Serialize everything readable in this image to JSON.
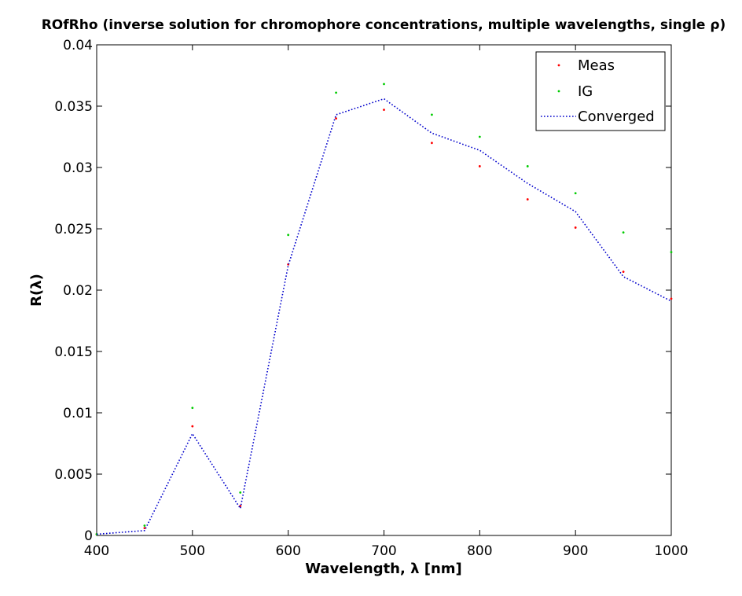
{
  "chart_data": {
    "type": "line",
    "title": "ROfRho (inverse solution for chromophore concentrations, multiple wavelengths, single ρ)",
    "xlabel": "Wavelength, λ [nm]",
    "ylabel": "R(λ)",
    "xlim": [
      400,
      1000
    ],
    "ylim": [
      0,
      0.04
    ],
    "xticks": [
      400,
      500,
      600,
      700,
      800,
      900,
      1000
    ],
    "yticks": [
      0,
      0.005,
      0.01,
      0.015,
      0.02,
      0.025,
      0.03,
      0.035,
      0.04
    ],
    "xtick_labels": [
      "400",
      "500",
      "600",
      "700",
      "800",
      "900",
      "1000"
    ],
    "ytick_labels": [
      "0",
      "0.005",
      "0.01",
      "0.015",
      "0.02",
      "0.025",
      "0.03",
      "0.035",
      "0.04"
    ],
    "grid": false,
    "legend_position": "top-right",
    "series": [
      {
        "name": "Meas",
        "style": "point",
        "color": "#ff0000",
        "x": [
          400,
          450,
          500,
          550,
          600,
          650,
          700,
          750,
          800,
          850,
          900,
          950,
          1000
        ],
        "y": [
          0.0001,
          0.0006,
          0.0089,
          0.0024,
          0.0221,
          0.034,
          0.0347,
          0.032,
          0.0301,
          0.0274,
          0.0251,
          0.0215,
          0.0193
        ]
      },
      {
        "name": "IG",
        "style": "point",
        "color": "#00cc00",
        "x": [
          400,
          450,
          500,
          550,
          600,
          650,
          700,
          750,
          800,
          850,
          900,
          950,
          1000
        ],
        "y": [
          0.0001,
          0.0008,
          0.0104,
          0.0035,
          0.0245,
          0.0361,
          0.0368,
          0.0343,
          0.0325,
          0.0301,
          0.0279,
          0.0247,
          0.0231
        ]
      },
      {
        "name": "Converged",
        "style": "dotted-line",
        "color": "#0000cc",
        "x": [
          400,
          450,
          500,
          550,
          600,
          650,
          700,
          750,
          800,
          850,
          900,
          950,
          1000
        ],
        "y": [
          0.0001,
          0.0004,
          0.0083,
          0.0022,
          0.022,
          0.0343,
          0.0356,
          0.0328,
          0.0314,
          0.0287,
          0.0264,
          0.0211,
          0.0191
        ]
      }
    ]
  }
}
